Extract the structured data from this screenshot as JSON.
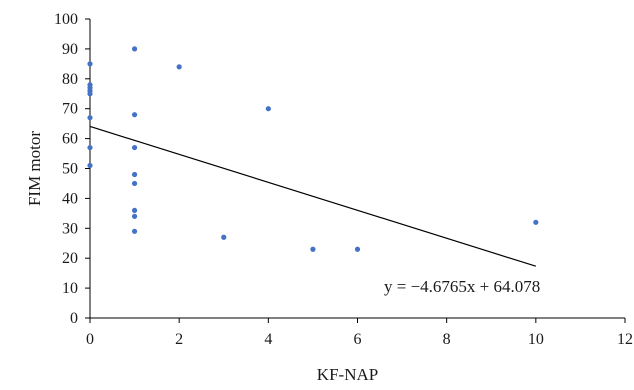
{
  "colors": {
    "point": "#4472C4",
    "trendline": "#000000",
    "axis": "#000000"
  },
  "chart_data": {
    "type": "scatter",
    "title": "",
    "xlabel": "KF-NAP",
    "ylabel": "FIM motor",
    "xlim": [
      0,
      12
    ],
    "ylim": [
      0,
      100
    ],
    "x_ticks": [
      0,
      2,
      4,
      6,
      8,
      10,
      12
    ],
    "y_ticks": [
      0,
      10,
      20,
      30,
      40,
      50,
      60,
      70,
      80,
      90,
      100
    ],
    "grid": false,
    "legend": "none",
    "series": [
      {
        "points": [
          {
            "x": 0,
            "y": 85
          },
          {
            "x": 0,
            "y": 78
          },
          {
            "x": 0,
            "y": 77
          },
          {
            "x": 0,
            "y": 76
          },
          {
            "x": 0,
            "y": 75
          },
          {
            "x": 0,
            "y": 67
          },
          {
            "x": 0,
            "y": 57
          },
          {
            "x": 0,
            "y": 51
          },
          {
            "x": 1,
            "y": 90
          },
          {
            "x": 1,
            "y": 68
          },
          {
            "x": 1,
            "y": 57
          },
          {
            "x": 1,
            "y": 48
          },
          {
            "x": 1,
            "y": 45
          },
          {
            "x": 1,
            "y": 36
          },
          {
            "x": 1,
            "y": 34
          },
          {
            "x": 1,
            "y": 29
          },
          {
            "x": 2,
            "y": 84
          },
          {
            "x": 3,
            "y": 27
          },
          {
            "x": 4,
            "y": 70
          },
          {
            "x": 5,
            "y": 23
          },
          {
            "x": 6,
            "y": 23
          },
          {
            "x": 10,
            "y": 32
          }
        ]
      }
    ],
    "trendline": {
      "slope": -4.6765,
      "intercept": 64.078,
      "x_range": [
        0,
        10
      ],
      "equation_label": "y = −4.6765x + 64.078"
    }
  }
}
